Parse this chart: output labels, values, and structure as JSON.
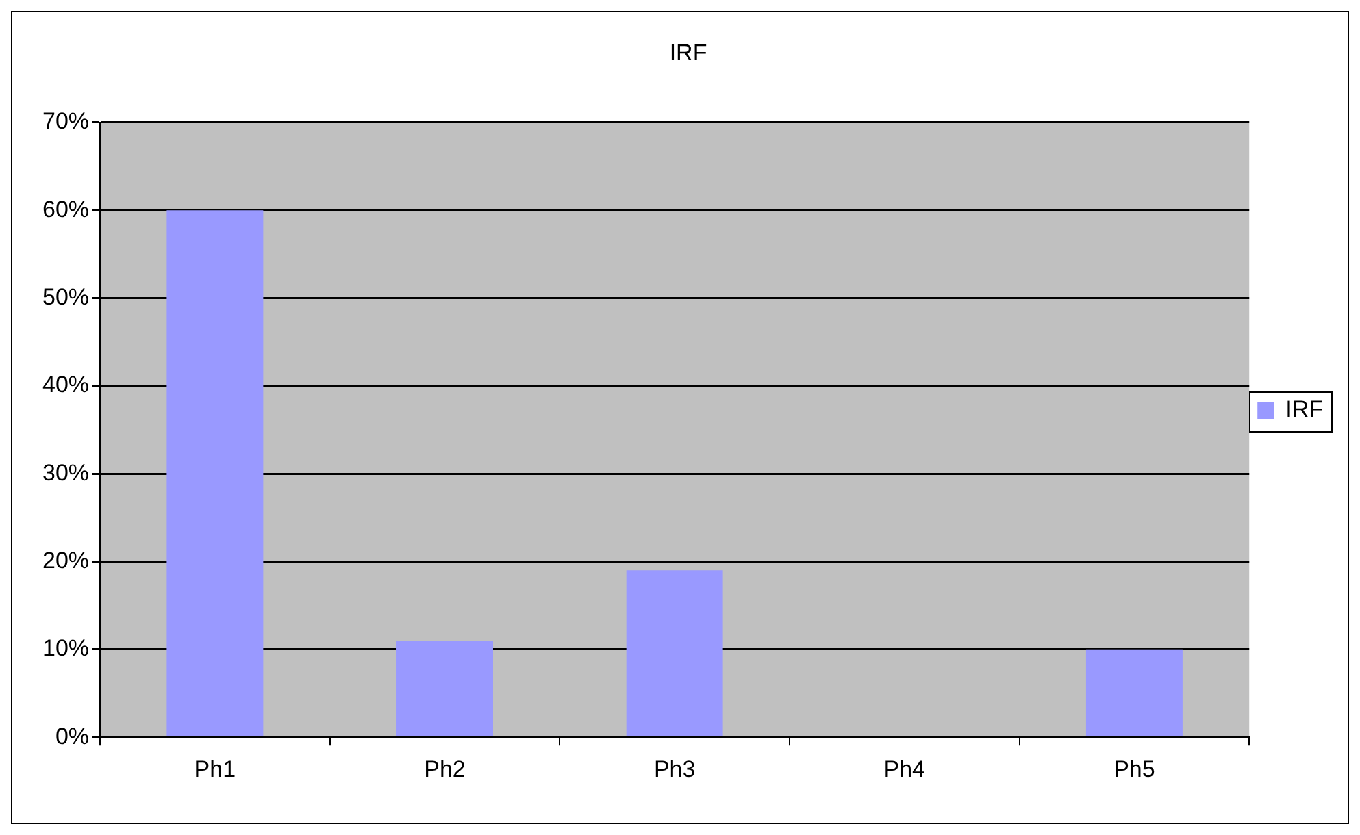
{
  "chart_data": {
    "type": "bar",
    "title": "IRF",
    "categories": [
      "Ph1",
      "Ph2",
      "Ph3",
      "Ph4",
      "Ph5"
    ],
    "series": [
      {
        "name": "IRF",
        "color": "#9999ff",
        "values": [
          60,
          11,
          19,
          0,
          10
        ]
      }
    ],
    "ylim": [
      0,
      70
    ],
    "yticks": [
      {
        "value": 0,
        "label": "0%"
      },
      {
        "value": 10,
        "label": "10%"
      },
      {
        "value": 20,
        "label": "20%"
      },
      {
        "value": 30,
        "label": "30%"
      },
      {
        "value": 40,
        "label": "40%"
      },
      {
        "value": 50,
        "label": "50%"
      },
      {
        "value": 60,
        "label": "60%"
      },
      {
        "value": 70,
        "label": "70%"
      }
    ],
    "grid": "y",
    "legend": "right"
  }
}
